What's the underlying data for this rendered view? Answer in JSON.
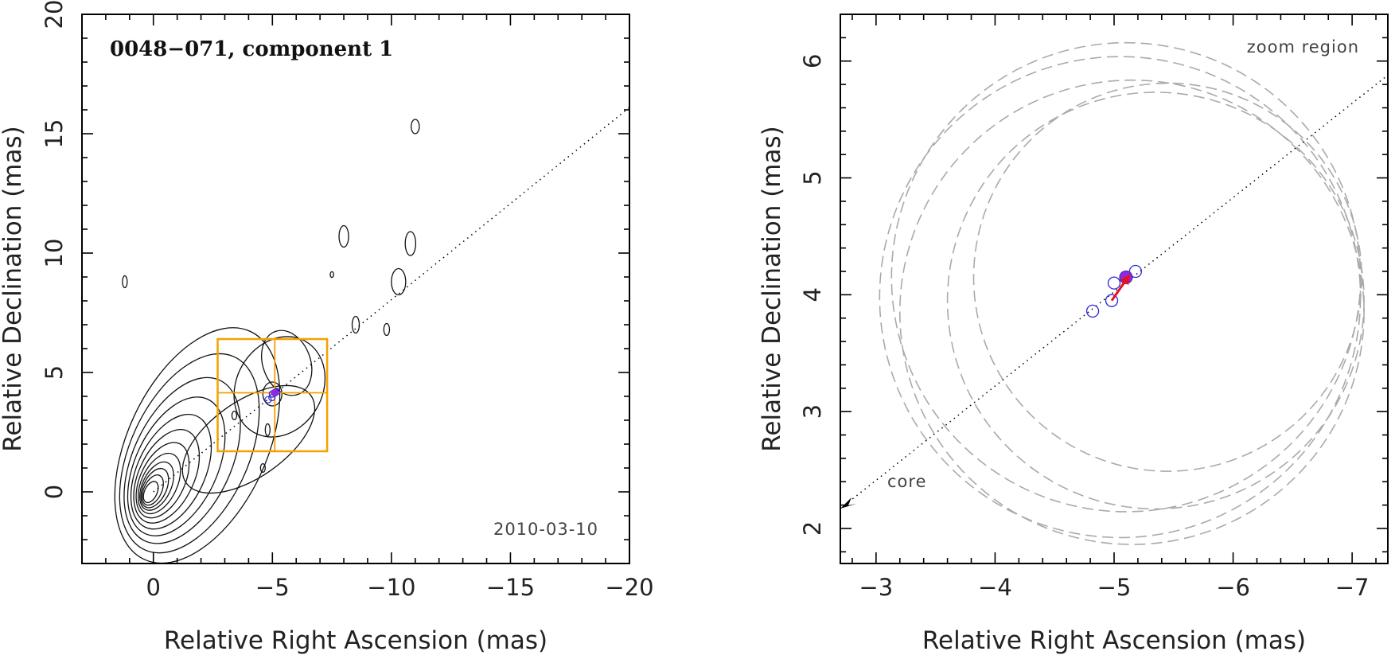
{
  "chart_data": [
    {
      "type": "contour",
      "title": "0048−071, component 1",
      "date": "2010-03-10",
      "xlabel": "Relative Right Ascension (mas)",
      "ylabel": "Relative Declination (mas)",
      "xlim": [
        3,
        -20
      ],
      "ylim": [
        -3,
        20
      ],
      "xticks": [
        0,
        -5,
        -10,
        -15,
        -20
      ],
      "xtick_labels": [
        "0",
        "−5",
        "−10",
        "−15",
        "−20"
      ],
      "yticks": [
        0,
        5,
        10,
        15,
        20
      ],
      "ytick_labels": [
        "0",
        "5",
        "10",
        "15",
        "20"
      ],
      "core": {
        "x": 0,
        "y": 0
      },
      "core_contour_scales": [
        0.35,
        0.5,
        0.65,
        0.8,
        1.0,
        1.25,
        1.55,
        1.9,
        2.3,
        2.75,
        3.3,
        3.9
      ],
      "jet_blobs": [
        {
          "x": -4.0,
          "y": 2.2,
          "rx": 3.2,
          "ry": 1.6,
          "angle": 35
        },
        {
          "x": -5.3,
          "y": 4.4,
          "rx": 2.2,
          "ry": 1.8,
          "angle": 60
        },
        {
          "x": -5.6,
          "y": 5.4,
          "rx": 1.0,
          "ry": 1.4,
          "angle": 20
        },
        {
          "x": -5.0,
          "y": 4.1,
          "rx": 0.4,
          "ry": 0.5,
          "angle": 0
        }
      ],
      "isolated_contours": [
        {
          "x": 1.2,
          "y": 8.8,
          "rx": 0.1,
          "ry": 0.25
        },
        {
          "x": -11.0,
          "y": 15.3,
          "rx": 0.17,
          "ry": 0.3
        },
        {
          "x": -8.0,
          "y": 10.7,
          "rx": 0.2,
          "ry": 0.45
        },
        {
          "x": -10.8,
          "y": 10.4,
          "rx": 0.22,
          "ry": 0.5
        },
        {
          "x": -7.5,
          "y": 9.1,
          "rx": 0.07,
          "ry": 0.12
        },
        {
          "x": -10.3,
          "y": 8.8,
          "rx": 0.3,
          "ry": 0.55
        },
        {
          "x": -8.5,
          "y": 7.0,
          "rx": 0.15,
          "ry": 0.35
        },
        {
          "x": -9.8,
          "y": 6.8,
          "rx": 0.12,
          "ry": 0.25
        },
        {
          "x": -4.6,
          "y": 1.0,
          "rx": 0.1,
          "ry": 0.18
        },
        {
          "x": -4.8,
          "y": 2.6,
          "rx": 0.1,
          "ry": 0.25
        },
        {
          "x": -3.4,
          "y": 3.2,
          "rx": 0.1,
          "ry": 0.18
        }
      ],
      "jet_direction_line": {
        "x1": 0,
        "y1": 0,
        "x2": -20,
        "y2": 16.1
      },
      "zoom_box": {
        "x1": -2.7,
        "x2": -7.3,
        "y1": 1.7,
        "y2": 6.4,
        "cross_x": -5.1,
        "cross_y": 4.15
      },
      "component_positions": [
        {
          "x": -4.82,
          "y": 3.86
        },
        {
          "x": -5.0,
          "y": 4.1
        },
        {
          "x": -4.98,
          "y": 3.95
        },
        {
          "x": -5.18,
          "y": 4.2
        }
      ],
      "mean_position": {
        "x": -5.1,
        "y": 4.15
      }
    },
    {
      "type": "scatter",
      "annotation": "zoom region",
      "core_label": "core",
      "xlabel": "Relative Right Ascension (mas)",
      "ylabel": "Relative Declination (mas)",
      "xlim": [
        -2.7,
        -7.3
      ],
      "ylim": [
        1.7,
        6.4
      ],
      "xticks": [
        -3,
        -4,
        -5,
        -6,
        -7
      ],
      "xtick_labels": [
        "−3",
        "−4",
        "−5",
        "−6",
        "−7"
      ],
      "yticks": [
        2,
        3,
        4,
        5,
        6
      ],
      "ytick_labels": [
        "2",
        "3",
        "4",
        "5",
        "6"
      ],
      "jet_direction_line": {
        "x1": -2.7,
        "y1": 2.17,
        "x2": -7.3,
        "y2": 5.88
      },
      "component_positions": [
        {
          "x": -4.82,
          "y": 3.86
        },
        {
          "x": -5.0,
          "y": 4.1
        },
        {
          "x": -4.98,
          "y": 3.95
        },
        {
          "x": -5.18,
          "y": 4.2
        }
      ],
      "mean_position": {
        "x": -5.1,
        "y": 4.15
      },
      "velocity_arrow": {
        "x1": -4.98,
        "y1": 3.95,
        "x2": -5.13,
        "y2": 4.17
      },
      "uncertainty_circles": [
        {
          "x": -5.1,
          "y": 4.15,
          "r": 1.97
        },
        {
          "x": -5.05,
          "y": 3.98,
          "r": 2.02
        },
        {
          "x": -5.15,
          "y": 3.85,
          "r": 1.95
        },
        {
          "x": -5.35,
          "y": 3.95,
          "r": 1.75
        },
        {
          "x": -5.45,
          "y": 4.15,
          "r": 1.63
        }
      ],
      "colors": {
        "positions": "#2a2ad8",
        "mean": "#8a2be2",
        "arrow": "#e8101c",
        "circles": "#aaaaaa",
        "zoom_box": "#f5a000"
      }
    }
  ]
}
